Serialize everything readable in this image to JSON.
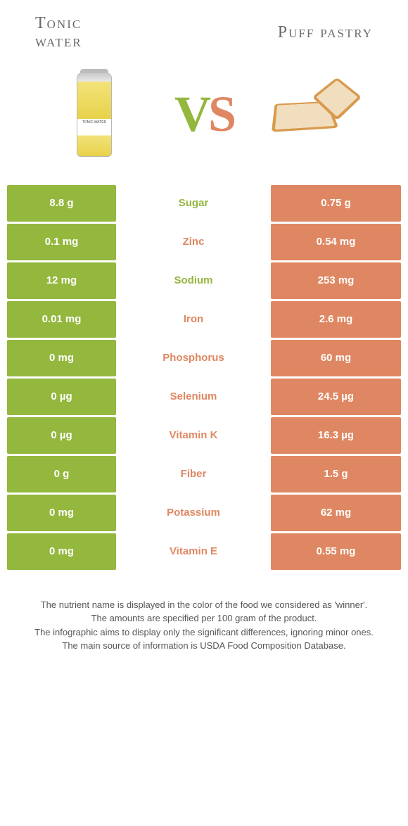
{
  "colors": {
    "left": "#94b73e",
    "right": "#df8762",
    "bg": "#ffffff"
  },
  "header": {
    "left_title_line1": "Tonic",
    "left_title_line2": "water",
    "right_title": "Puff pastry",
    "vs_v": "V",
    "vs_s": "S"
  },
  "rows": [
    {
      "left": "8.8 g",
      "label": "Sugar",
      "right": "0.75 g",
      "winner": "left"
    },
    {
      "left": "0.1 mg",
      "label": "Zinc",
      "right": "0.54 mg",
      "winner": "right"
    },
    {
      "left": "12 mg",
      "label": "Sodium",
      "right": "253 mg",
      "winner": "left"
    },
    {
      "left": "0.01 mg",
      "label": "Iron",
      "right": "2.6 mg",
      "winner": "right"
    },
    {
      "left": "0 mg",
      "label": "Phosphorus",
      "right": "60 mg",
      "winner": "right"
    },
    {
      "left": "0 µg",
      "label": "Selenium",
      "right": "24.5 µg",
      "winner": "right"
    },
    {
      "left": "0 µg",
      "label": "Vitamin K",
      "right": "16.3 µg",
      "winner": "right"
    },
    {
      "left": "0 g",
      "label": "Fiber",
      "right": "1.5 g",
      "winner": "right"
    },
    {
      "left": "0 mg",
      "label": "Potassium",
      "right": "62 mg",
      "winner": "right"
    },
    {
      "left": "0 mg",
      "label": "Vitamin E",
      "right": "0.55 mg",
      "winner": "right"
    }
  ],
  "footer": {
    "l1": "The nutrient name is displayed in the color of the food we considered as 'winner'.",
    "l2": "The amounts are specified per 100 gram of the product.",
    "l3": "The infographic aims to display only the significant differences, ignoring minor ones.",
    "l4": "The main source of information is USDA Food Composition Database."
  },
  "can_text": "TONIC WATER"
}
